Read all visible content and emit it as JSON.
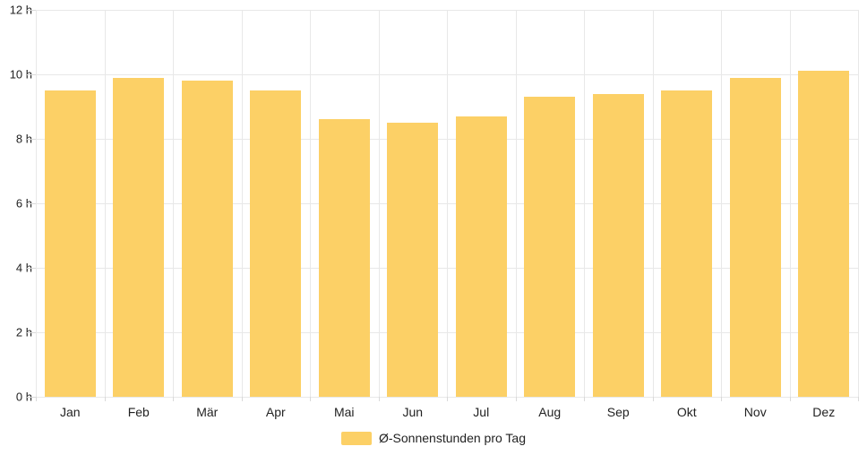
{
  "colors": {
    "bar": "#fcd066",
    "grid": "#e8e8e8",
    "tick": "#d9d9d9",
    "text": "#222222",
    "background": "#ffffff"
  },
  "legend": {
    "label": "Ø-Sonnenstunden pro Tag"
  },
  "chart_data": {
    "type": "bar",
    "title": "",
    "xlabel": "",
    "ylabel": "",
    "categories": [
      "Jan",
      "Feb",
      "Mär",
      "Apr",
      "Mai",
      "Jun",
      "Jul",
      "Aug",
      "Sep",
      "Okt",
      "Nov",
      "Dez"
    ],
    "series": [
      {
        "name": "Ø-Sonnenstunden pro Tag",
        "values": [
          9.5,
          9.9,
          9.8,
          9.5,
          8.6,
          8.5,
          8.7,
          9.3,
          9.4,
          9.5,
          9.9,
          10.1
        ]
      }
    ],
    "ylim": [
      0,
      12
    ],
    "ytick_step": 2,
    "ytick_labels": [
      "0 h",
      "2 h",
      "4 h",
      "6 h",
      "8 h",
      "10 h",
      "12 h"
    ],
    "grid": true,
    "legend_position": "bottom-center",
    "bar_color": "#fcd066"
  }
}
